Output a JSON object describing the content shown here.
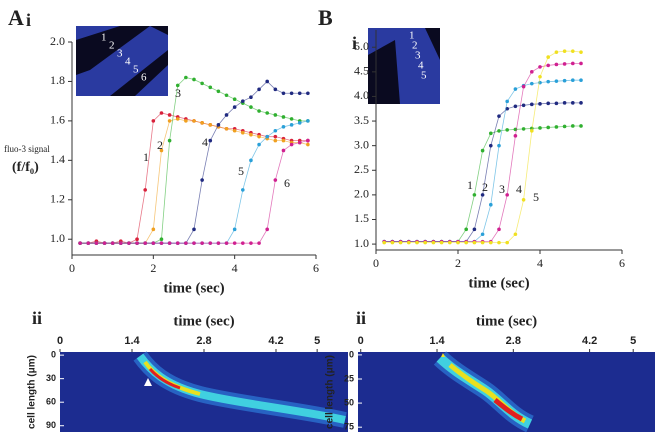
{
  "panel_labels": [
    "A",
    "B"
  ],
  "chart_data": [
    {
      "type": "line",
      "panel": "i",
      "x_label": "time (sec)",
      "y_label": [
        "fluo-3 signal",
        "(f/f₀)"
      ],
      "inset_labels": [
        "1",
        "2",
        "3",
        "4",
        "5",
        "6"
      ],
      "xlim": [
        0,
        6
      ],
      "xticks": [
        0,
        2,
        4,
        6
      ],
      "ylim": [
        0.92,
        2.0
      ],
      "yticks": [
        {
          "value": 1,
          "label": "1.0"
        },
        1.2,
        1.4,
        1.6,
        1.8,
        {
          "value": 2,
          "label": "2.0"
        }
      ],
      "x": [
        0.2,
        0.4,
        0.6,
        0.8,
        1.0,
        1.2,
        1.4,
        1.6,
        1.8,
        2.0,
        2.2,
        2.4,
        2.6,
        2.8,
        3.0,
        3.2,
        3.4,
        3.6,
        3.8,
        4.0,
        4.2,
        4.4,
        4.6,
        4.8,
        5.0,
        5.2,
        5.4,
        5.6,
        5.8
      ],
      "series": [
        {
          "name": "1",
          "color": "#d8203a",
          "values": [
            0.98,
            0.98,
            0.99,
            0.98,
            0.98,
            0.99,
            0.98,
            1.0,
            1.25,
            1.6,
            1.64,
            1.63,
            1.62,
            1.61,
            1.6,
            1.59,
            1.58,
            1.57,
            1.56,
            1.56,
            1.55,
            1.54,
            1.53,
            1.52,
            1.52,
            1.51,
            1.5,
            1.5,
            1.5
          ]
        },
        {
          "name": "2",
          "color": "#f0a020",
          "values": [
            0.98,
            0.98,
            0.98,
            0.98,
            0.98,
            0.98,
            0.98,
            0.98,
            0.98,
            1.05,
            1.45,
            1.6,
            1.61,
            1.6,
            1.6,
            1.59,
            1.58,
            1.57,
            1.56,
            1.55,
            1.54,
            1.53,
            1.52,
            1.51,
            1.5,
            1.5,
            1.49,
            1.49,
            1.48
          ]
        },
        {
          "name": "3",
          "color": "#30b030",
          "values": [
            0.98,
            0.98,
            0.98,
            0.98,
            0.98,
            0.98,
            0.98,
            0.98,
            0.98,
            0.98,
            1.0,
            1.5,
            1.78,
            1.82,
            1.81,
            1.79,
            1.77,
            1.75,
            1.73,
            1.71,
            1.69,
            1.67,
            1.65,
            1.64,
            1.63,
            1.62,
            1.61,
            1.6,
            1.6
          ]
        },
        {
          "name": "4",
          "color": "#202a80",
          "values": [
            0.98,
            0.98,
            0.98,
            0.98,
            0.98,
            0.98,
            0.98,
            0.98,
            0.98,
            0.98,
            0.98,
            0.98,
            0.98,
            0.98,
            1.05,
            1.3,
            1.5,
            1.58,
            1.63,
            1.67,
            1.7,
            1.72,
            1.76,
            1.8,
            1.76,
            1.74,
            1.74,
            1.74,
            1.74
          ]
        },
        {
          "name": "5",
          "color": "#2aa0d8",
          "values": [
            0.98,
            0.98,
            0.98,
            0.98,
            0.98,
            0.98,
            0.98,
            0.98,
            0.98,
            0.98,
            0.98,
            0.98,
            0.98,
            0.98,
            0.98,
            0.98,
            0.98,
            0.98,
            0.98,
            1.05,
            1.25,
            1.4,
            1.48,
            1.52,
            1.55,
            1.57,
            1.58,
            1.59,
            1.6
          ]
        },
        {
          "name": "6",
          "color": "#d02090",
          "values": [
            0.98,
            0.98,
            0.98,
            0.98,
            0.98,
            0.98,
            0.98,
            0.98,
            0.98,
            0.98,
            0.98,
            0.98,
            0.98,
            0.98,
            0.98,
            0.98,
            0.98,
            0.98,
            0.98,
            0.98,
            0.98,
            0.98,
            0.98,
            1.05,
            1.3,
            1.45,
            1.48,
            1.49,
            1.5
          ]
        }
      ]
    },
    {
      "type": "line",
      "panel": "i",
      "x_label": "time (sec)",
      "inset_labels": [
        "1",
        "2",
        "3",
        "4",
        "5"
      ],
      "xlim": [
        0,
        6
      ],
      "xticks": [
        0,
        2,
        4,
        6
      ],
      "ylim": [
        0.88,
        5.35
      ],
      "yticks": [
        {
          "value": 1,
          "label": "1.0"
        },
        1.5,
        {
          "value": 2,
          "label": "2.0"
        },
        2.5,
        {
          "value": 3,
          "label": "3.0"
        },
        3.5,
        {
          "value": 4,
          "label": "4.0"
        },
        4.5,
        {
          "value": 5,
          "label": "5.0"
        }
      ],
      "x": [
        0.2,
        0.4,
        0.6,
        0.8,
        1.0,
        1.2,
        1.4,
        1.6,
        1.8,
        2.0,
        2.2,
        2.4,
        2.6,
        2.8,
        3.0,
        3.2,
        3.4,
        3.6,
        3.8,
        4.0,
        4.2,
        4.4,
        4.6,
        4.8,
        5.0
      ],
      "series": [
        {
          "name": "1",
          "color": "#30b030",
          "values": [
            1.05,
            1.05,
            1.05,
            1.05,
            1.05,
            1.05,
            1.05,
            1.05,
            1.05,
            1.05,
            1.3,
            2.0,
            2.9,
            3.25,
            3.3,
            3.32,
            3.33,
            3.34,
            3.35,
            3.36,
            3.37,
            3.38,
            3.39,
            3.4,
            3.4
          ]
        },
        {
          "name": "2",
          "color": "#202a80",
          "values": [
            1.05,
            1.05,
            1.05,
            1.05,
            1.05,
            1.05,
            1.05,
            1.05,
            1.05,
            1.05,
            1.05,
            1.3,
            2.0,
            3.0,
            3.6,
            3.75,
            3.8,
            3.82,
            3.84,
            3.85,
            3.86,
            3.86,
            3.87,
            3.87,
            3.87
          ]
        },
        {
          "name": "3",
          "color": "#2aa0d8",
          "values": [
            1.05,
            1.05,
            1.05,
            1.05,
            1.05,
            1.05,
            1.05,
            1.05,
            1.05,
            1.05,
            1.05,
            1.05,
            1.2,
            1.8,
            3.0,
            3.9,
            4.15,
            4.22,
            4.26,
            4.28,
            4.3,
            4.31,
            4.32,
            4.33,
            4.33
          ]
        },
        {
          "name": "4",
          "color": "#d02090",
          "values": [
            1.05,
            1.05,
            1.05,
            1.05,
            1.05,
            1.05,
            1.05,
            1.05,
            1.05,
            1.05,
            1.05,
            1.05,
            1.05,
            1.05,
            1.3,
            2.0,
            3.2,
            4.2,
            4.5,
            4.6,
            4.63,
            4.65,
            4.66,
            4.67,
            4.67
          ]
        },
        {
          "name": "5",
          "color": "#f0e020",
          "values": [
            1.03,
            1.03,
            1.03,
            1.03,
            1.03,
            1.03,
            1.03,
            1.03,
            1.03,
            1.03,
            1.03,
            1.03,
            1.03,
            1.03,
            1.03,
            1.03,
            1.2,
            1.9,
            3.3,
            4.4,
            4.8,
            4.9,
            4.92,
            4.92,
            4.9
          ]
        }
      ]
    },
    {
      "type": "heatmap",
      "panel": "ii",
      "title": "time (sec)",
      "y_label": "cell length (μm)",
      "xlim": [
        0,
        5.6
      ],
      "xticks": [
        0,
        1.4,
        2.8,
        4.2,
        5
      ],
      "ylim": [
        -4,
        98
      ],
      "yticks": [
        0,
        30,
        60,
        90
      ]
    },
    {
      "type": "heatmap",
      "panel": "ii",
      "title": "time (sec)",
      "y_label": "cell length (μm)",
      "xlim": [
        -0.05,
        5.4
      ],
      "xticks": [
        0,
        1.4,
        2.8,
        4.2,
        5
      ],
      "ylim": [
        -3,
        80
      ],
      "yticks": [
        0,
        25,
        50,
        75
      ]
    }
  ]
}
